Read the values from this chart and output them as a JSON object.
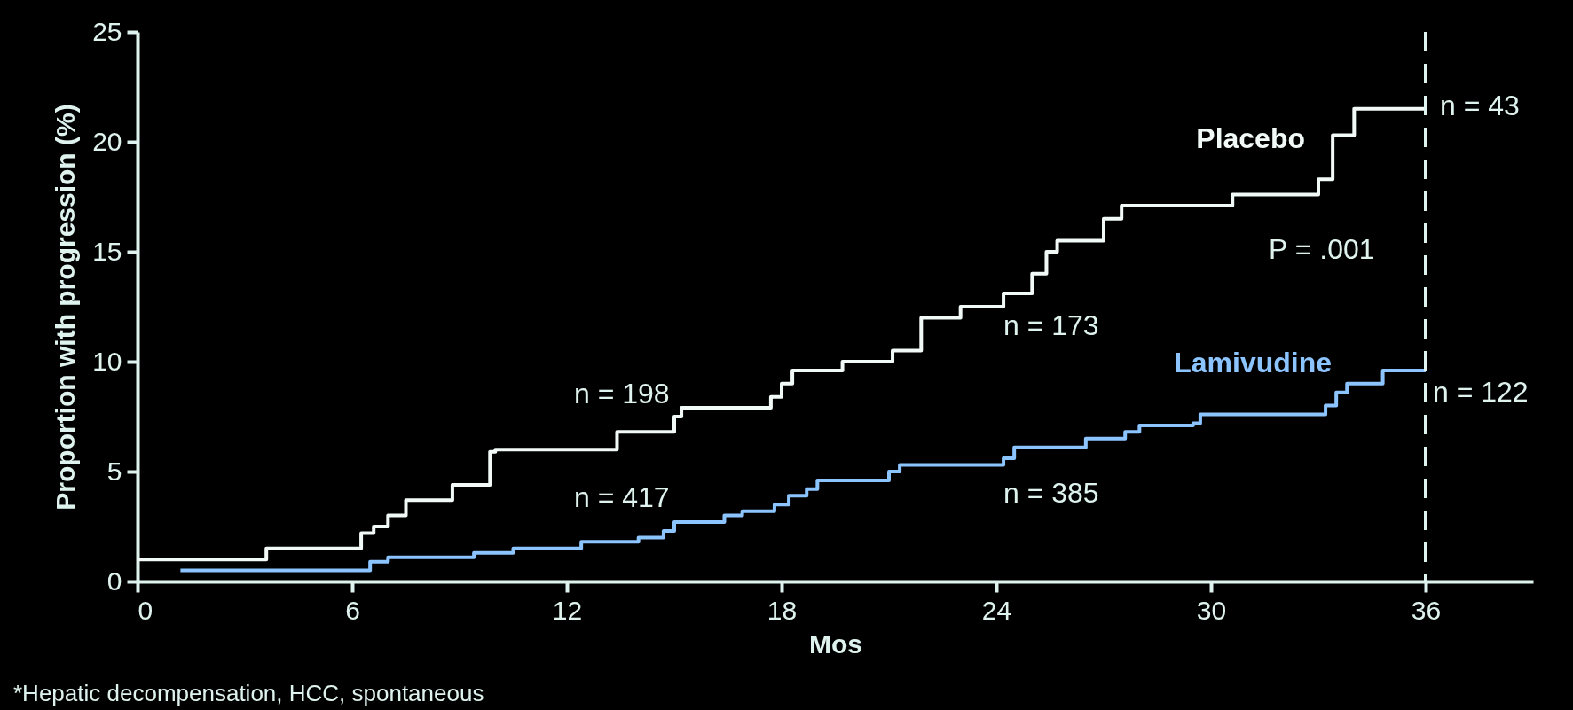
{
  "chart_data": {
    "type": "step",
    "xlabel": "Mos",
    "ylabel": "Proportion with progression (%)",
    "xlim": [
      0,
      39
    ],
    "xticks": [
      0,
      6,
      12,
      18,
      24,
      30,
      36
    ],
    "ylim": [
      0,
      25
    ],
    "yticks": [
      0,
      5,
      10,
      15,
      20,
      25
    ],
    "grid": false,
    "legend": false,
    "series": [
      {
        "name": "Placebo",
        "color": "#f2faf7",
        "x": [
          0,
          3.6,
          6.25,
          6.6,
          7.0,
          7.5,
          8.8,
          9.85,
          10.0,
          13.4,
          15.0,
          15.2,
          17.7,
          18.0,
          18.3,
          19.7,
          21.1,
          21.9,
          23.0,
          24.2,
          25.0,
          25.4,
          25.7,
          27.0,
          27.5,
          30.6,
          33.0,
          33.4,
          34.0,
          36
        ],
        "values": [
          1.0,
          1.5,
          2.2,
          2.5,
          3.0,
          3.7,
          4.4,
          5.9,
          6.0,
          6.8,
          7.5,
          7.9,
          8.4,
          9.0,
          9.6,
          10.0,
          10.5,
          12.0,
          12.5,
          13.1,
          14.0,
          15.0,
          15.5,
          16.5,
          17.1,
          17.6,
          18.3,
          20.3,
          21.5,
          21.5
        ]
      },
      {
        "name": "Lamivudine",
        "color": "#8cc4ff",
        "x": [
          1.2,
          6.5,
          7.0,
          9.4,
          10.5,
          12.4,
          14.0,
          14.7,
          15.0,
          16.4,
          16.9,
          17.8,
          18.2,
          18.7,
          19.0,
          21.0,
          21.3,
          24.2,
          24.5,
          26.5,
          27.6,
          28.0,
          29.5,
          29.7,
          33.2,
          33.5,
          33.8,
          34.8,
          36
        ],
        "values": [
          0.5,
          0.9,
          1.1,
          1.3,
          1.5,
          1.8,
          2.0,
          2.3,
          2.7,
          3.0,
          3.2,
          3.5,
          3.9,
          4.2,
          4.6,
          5.0,
          5.3,
          5.6,
          6.1,
          6.5,
          6.8,
          7.1,
          7.2,
          7.6,
          8.0,
          8.6,
          9.0,
          9.6,
          9.6
        ]
      }
    ],
    "ref_lines": [
      {
        "axis": "x",
        "value": 36,
        "color": "#dff3ee",
        "line_style": "dashed"
      }
    ],
    "annotations": [
      "n = 198",
      "n = 417",
      "n = 173",
      "n = 385",
      "n = 43",
      "n = 122",
      "P = .001",
      "*Hepatic decompensation, HCC, spontaneous"
    ]
  }
}
